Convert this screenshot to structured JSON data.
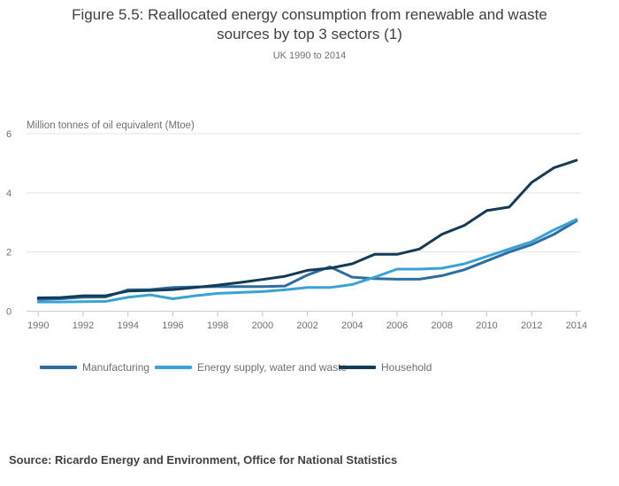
{
  "header": {
    "title": "Figure 5.5: Reallocated energy consumption from renewable and waste sources by top 3 sectors (1)",
    "subtitle": "UK 1990 to 2014"
  },
  "footer": {
    "source": "Source: Ricardo Energy and Environment, Office for National Statistics"
  },
  "chart_data": {
    "type": "line",
    "unit_label": "Million tonnes of oil equivalent (Mtoe)",
    "xlabel": "",
    "ylabel": "Million tonnes of oil equivalent (Mtoe)",
    "x": [
      1990,
      1991,
      1992,
      1993,
      1994,
      1995,
      1996,
      1997,
      1998,
      1999,
      2000,
      2001,
      2002,
      2003,
      2004,
      2005,
      2006,
      2007,
      2008,
      2009,
      2010,
      2011,
      2012,
      2013,
      2014
    ],
    "xticks": [
      1990,
      1992,
      1994,
      1996,
      1998,
      2000,
      2002,
      2004,
      2006,
      2008,
      2010,
      2012,
      2014
    ],
    "ylim": [
      0,
      6
    ],
    "yticks": [
      0,
      2,
      4,
      6
    ],
    "grid": "horizontal",
    "legend_position": "bottom",
    "series": [
      {
        "name": "Manufacturing",
        "color": "#2E6DA0",
        "values": [
          0.4,
          0.42,
          0.47,
          0.48,
          0.72,
          0.73,
          0.8,
          0.82,
          0.83,
          0.83,
          0.83,
          0.85,
          1.22,
          1.5,
          1.15,
          1.1,
          1.08,
          1.08,
          1.2,
          1.4,
          1.7,
          2.0,
          2.25,
          2.6,
          3.05
        ]
      },
      {
        "name": "Energy supply, water and waste",
        "color": "#39A3D8",
        "values": [
          0.31,
          0.31,
          0.32,
          0.33,
          0.47,
          0.55,
          0.42,
          0.52,
          0.6,
          0.63,
          0.66,
          0.72,
          0.8,
          0.8,
          0.9,
          1.15,
          1.42,
          1.42,
          1.45,
          1.6,
          1.85,
          2.1,
          2.35,
          2.75,
          3.1
        ]
      },
      {
        "name": "Household",
        "color": "#133B55",
        "values": [
          0.45,
          0.46,
          0.52,
          0.52,
          0.68,
          0.7,
          0.73,
          0.8,
          0.88,
          0.97,
          1.07,
          1.18,
          1.38,
          1.45,
          1.6,
          1.92,
          1.92,
          2.1,
          2.6,
          2.9,
          3.4,
          3.52,
          4.35,
          4.85,
          5.1
        ]
      }
    ]
  },
  "style": {
    "grid_color": "#e4e4e4",
    "axis_color": "#c9ccd1",
    "tick_color": "#bfc4cb",
    "tick_label_color": "#707070"
  }
}
